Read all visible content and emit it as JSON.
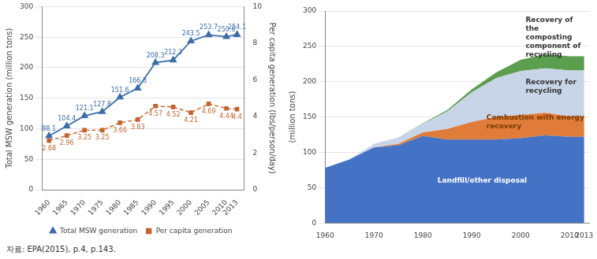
{
  "chart_data": [
    {
      "type": "line",
      "x": [
        1960,
        1965,
        1970,
        1975,
        1980,
        1985,
        1990,
        1995,
        2000,
        2005,
        2010,
        2013
      ],
      "xlim": [
        1958,
        2015
      ],
      "xticks": [
        1960,
        1965,
        1970,
        1975,
        1980,
        1985,
        1990,
        1995,
        2000,
        2005,
        2010,
        2013
      ],
      "ylim": [
        0,
        300
      ],
      "yticks": [
        0,
        50,
        100,
        150,
        200,
        250,
        300
      ],
      "y2lim": [
        0,
        10
      ],
      "y2ticks": [
        0,
        2,
        4,
        6,
        8,
        10
      ],
      "y_label": "Total MSW generation (million tons)",
      "y2_label": "Per capita generation (lbs/person/day)",
      "grid": true,
      "legend": "bottom",
      "data_labels": true,
      "series": [
        {
          "name": "Total MSW generation",
          "color": "#3a6eaa",
          "marker": "triangle",
          "line_style": "solid",
          "axis": "y",
          "values": [
            88.1,
            104.4,
            121.1,
            127.8,
            151.6,
            166.3,
            208.3,
            212.3,
            243.5,
            253.7,
            250.6,
            254.1
          ]
        },
        {
          "name": "Per capita generation",
          "color": "#c8622a",
          "marker": "square",
          "line_style": "dashed",
          "axis": "y2",
          "values": [
            2.68,
            2.96,
            3.25,
            3.25,
            3.66,
            3.83,
            4.57,
            4.52,
            4.21,
            4.69,
            4.44,
            4.4
          ]
        }
      ],
      "annotations": [
        {
          "text": "자료: EPA(2015), p.4, p.143."
        }
      ]
    },
    {
      "type": "area",
      "stacked": true,
      "x": [
        1960,
        1965,
        1970,
        1975,
        1980,
        1985,
        1990,
        1995,
        2000,
        2005,
        2010,
        2013
      ],
      "xlim": [
        1960,
        2014
      ],
      "xticks": [
        1960,
        1970,
        1980,
        1990,
        2000,
        2010,
        2013
      ],
      "ylim": [
        0,
        300
      ],
      "yticks": [
        0,
        50,
        100,
        150,
        200,
        250,
        300
      ],
      "y_label": "(million tons)",
      "grid": true,
      "series": [
        {
          "name": "Landfill/other disposal",
          "color": "#4472c4",
          "values": [
            78,
            90,
            107,
            110,
            123,
            118,
            118,
            118,
            120,
            124,
            122,
            122
          ]
        },
        {
          "name": "Combustion with energy recovery",
          "color": "#e07c39",
          "values": [
            0,
            0,
            0,
            2,
            5,
            15,
            25,
            32,
            33,
            32,
            29,
            29
          ]
        },
        {
          "name": "Recovery for recycling",
          "color": "#c8d5e8",
          "values": [
            0,
            0,
            5,
            9,
            12,
            25,
            42,
            55,
            62,
            63,
            65,
            65
          ]
        },
        {
          "name": "Recovery of the composting component of recycling",
          "color": "#5a9e4e",
          "values": [
            0,
            0,
            0,
            0,
            1,
            2,
            4,
            8,
            16,
            20,
            20,
            20
          ]
        }
      ],
      "annotations": [
        {
          "text": "Landfill/other disposal",
          "x": 1983,
          "y": 60
        },
        {
          "text": "Combustion with energy recovery",
          "x": 1993,
          "y": 143
        },
        {
          "text": "Recovery for recycling",
          "x": 2001,
          "y": 193
        },
        {
          "text": "Recovery of the composting component of recycling",
          "x": 2001,
          "y": 263
        }
      ]
    }
  ]
}
